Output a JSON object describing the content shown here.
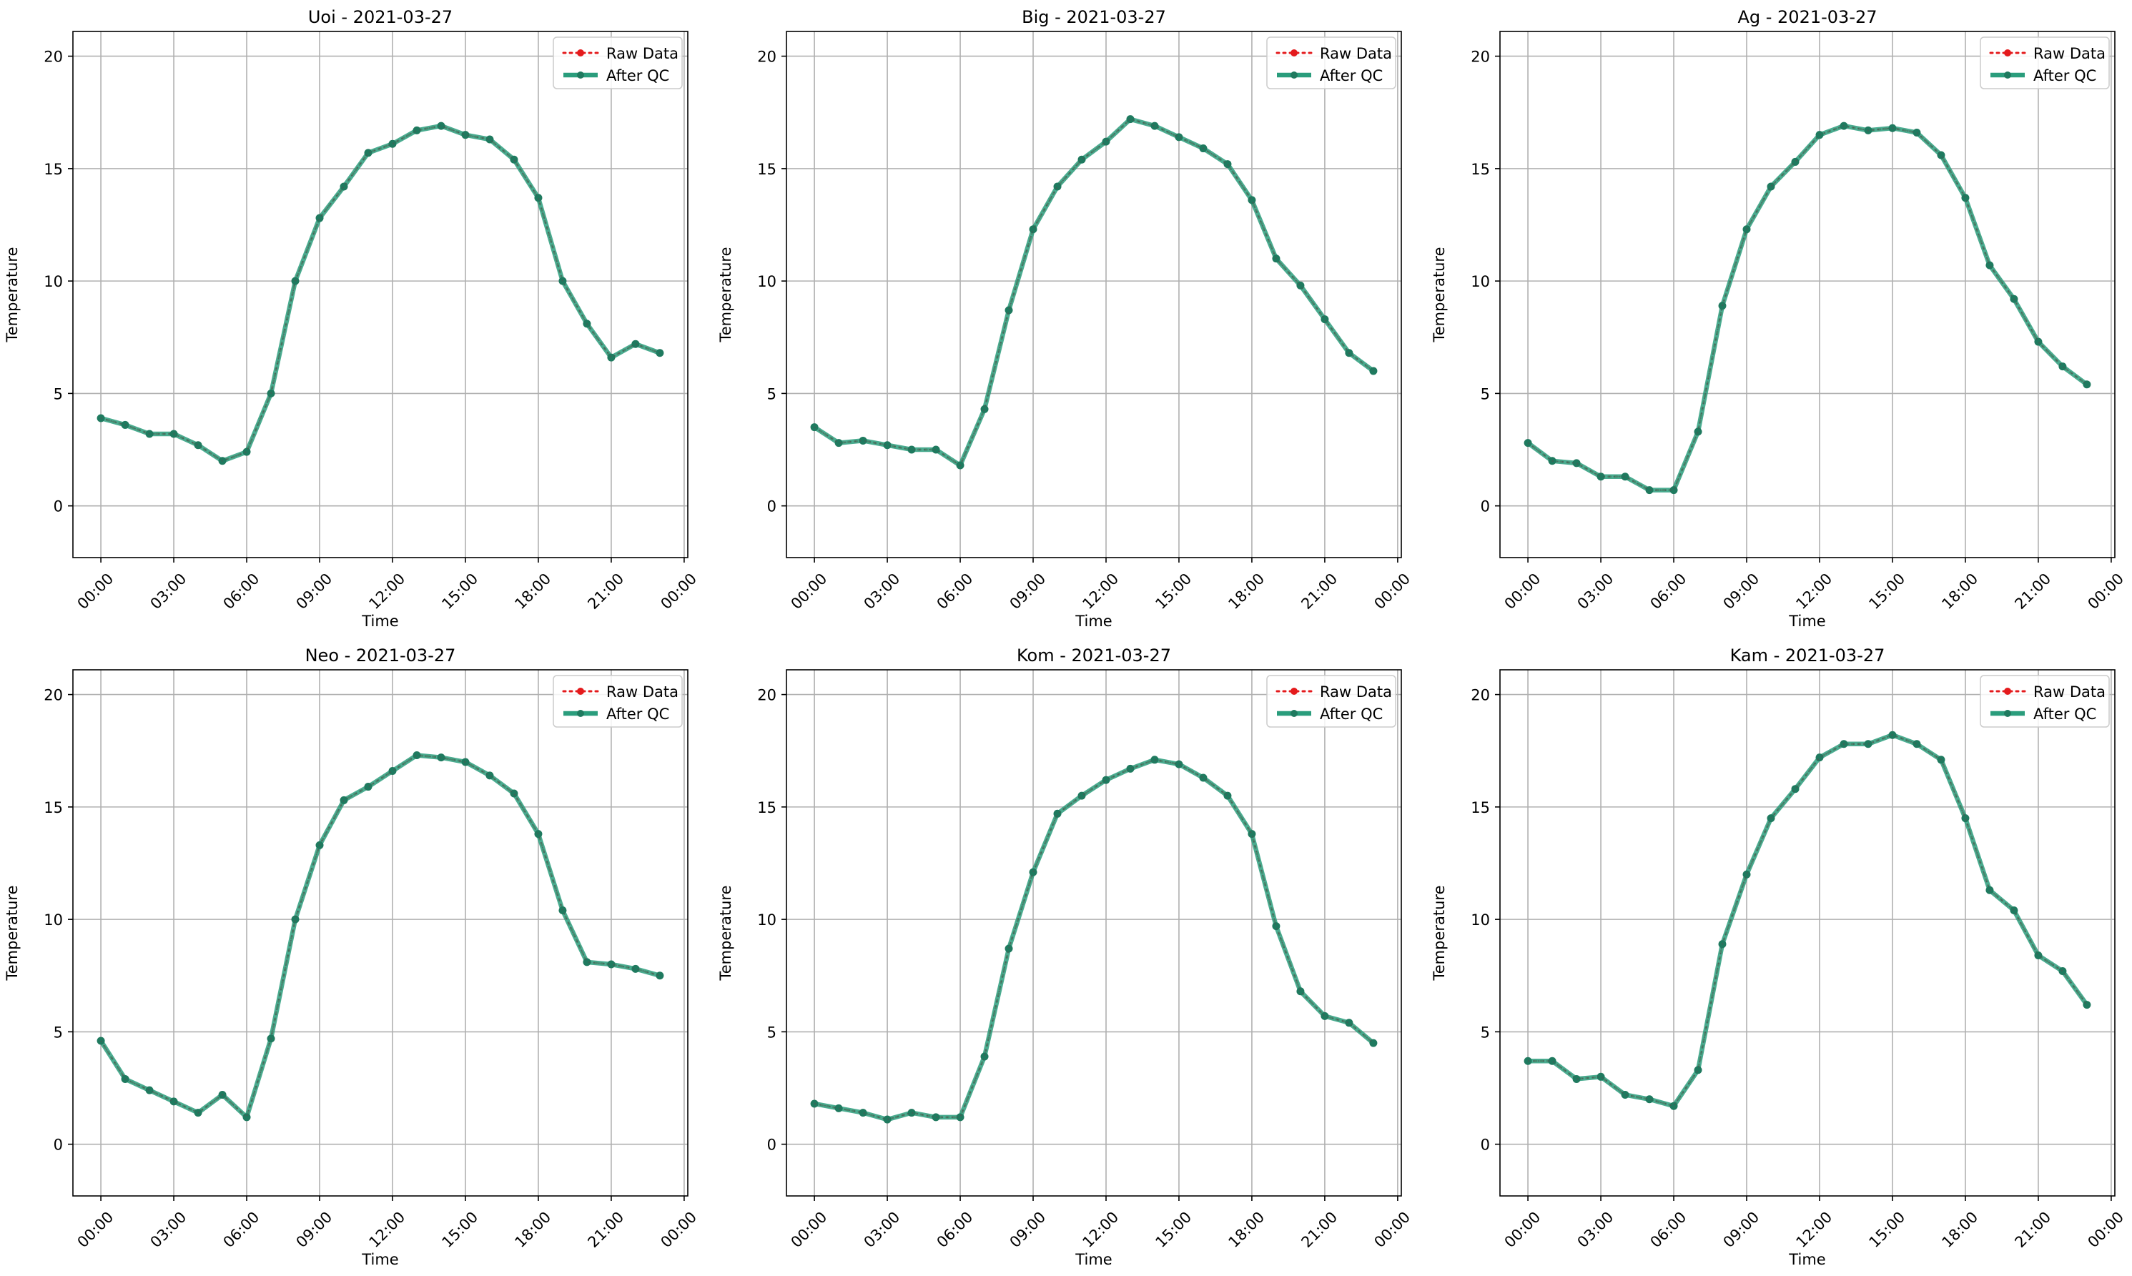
{
  "figure": {
    "ylabel": "Temperature",
    "xlabel": "Time",
    "legend": [
      "Raw Data",
      "After QC"
    ],
    "legend_placement": "top-right",
    "grid": true,
    "colors": {
      "raw": "#e41a1c",
      "qc": "#2a9d7c",
      "grid": "#b0b0b0"
    }
  },
  "chart_data": [
    {
      "type": "line",
      "title": "Uoi - 2021-03-27",
      "xlabel": "Time",
      "ylabel": "Temperature",
      "xticks": [
        "00:00",
        "03:00",
        "06:00",
        "09:00",
        "12:00",
        "15:00",
        "18:00",
        "21:00",
        "00:00"
      ],
      "yticks": [
        0,
        5,
        10,
        15,
        20
      ],
      "ylim": [
        -2.3,
        21.1
      ],
      "x_hours": [
        0,
        1,
        2,
        3,
        4,
        5,
        6,
        7,
        8,
        9,
        10,
        11,
        12,
        13,
        14,
        15,
        16,
        17,
        18,
        19,
        20,
        21,
        22,
        23
      ],
      "series": [
        {
          "name": "Raw Data",
          "values": [
            3.9,
            3.6,
            3.2,
            3.2,
            2.7,
            2.0,
            2.4,
            5.0,
            10.0,
            12.8,
            14.2,
            15.7,
            16.1,
            16.7,
            16.9,
            16.5,
            16.3,
            15.4,
            13.7,
            10.0,
            8.1,
            6.6,
            7.2,
            6.8
          ]
        },
        {
          "name": "After QC",
          "values": [
            3.9,
            3.6,
            3.2,
            3.2,
            2.7,
            2.0,
            2.4,
            5.0,
            10.0,
            12.8,
            14.2,
            15.7,
            16.1,
            16.7,
            16.9,
            16.5,
            16.3,
            15.4,
            13.7,
            10.0,
            8.1,
            6.6,
            7.2,
            6.8
          ]
        }
      ]
    },
    {
      "type": "line",
      "title": "Big - 2021-03-27",
      "xlabel": "Time",
      "ylabel": "Temperature",
      "xticks": [
        "00:00",
        "03:00",
        "06:00",
        "09:00",
        "12:00",
        "15:00",
        "18:00",
        "21:00",
        "00:00"
      ],
      "yticks": [
        0,
        5,
        10,
        15,
        20
      ],
      "ylim": [
        -2.3,
        21.1
      ],
      "x_hours": [
        0,
        1,
        2,
        3,
        4,
        5,
        6,
        7,
        8,
        9,
        10,
        11,
        12,
        13,
        14,
        15,
        16,
        17,
        18,
        19,
        20,
        21,
        22,
        23
      ],
      "series": [
        {
          "name": "Raw Data",
          "values": [
            3.5,
            2.8,
            2.9,
            2.7,
            2.5,
            2.5,
            1.8,
            4.3,
            8.7,
            12.3,
            14.2,
            15.4,
            16.2,
            17.2,
            16.9,
            16.4,
            15.9,
            15.2,
            13.6,
            11.0,
            9.8,
            8.3,
            6.8,
            6.0
          ]
        },
        {
          "name": "After QC",
          "values": [
            3.5,
            2.8,
            2.9,
            2.7,
            2.5,
            2.5,
            1.8,
            4.3,
            8.7,
            12.3,
            14.2,
            15.4,
            16.2,
            17.2,
            16.9,
            16.4,
            15.9,
            15.2,
            13.6,
            11.0,
            9.8,
            8.3,
            6.8,
            6.0
          ]
        }
      ]
    },
    {
      "type": "line",
      "title": "Ag - 2021-03-27",
      "xlabel": "Time",
      "ylabel": "Temperature",
      "xticks": [
        "00:00",
        "03:00",
        "06:00",
        "09:00",
        "12:00",
        "15:00",
        "18:00",
        "21:00",
        "00:00"
      ],
      "yticks": [
        0,
        5,
        10,
        15,
        20
      ],
      "ylim": [
        -2.3,
        21.1
      ],
      "x_hours": [
        0,
        1,
        2,
        3,
        4,
        5,
        6,
        7,
        8,
        9,
        10,
        11,
        12,
        13,
        14,
        15,
        16,
        17,
        18,
        19,
        20,
        21,
        22,
        23
      ],
      "series": [
        {
          "name": "Raw Data",
          "values": [
            2.8,
            2.0,
            1.9,
            1.3,
            1.3,
            0.7,
            0.7,
            3.3,
            8.9,
            12.3,
            14.2,
            15.3,
            16.5,
            16.9,
            16.7,
            16.8,
            16.6,
            15.6,
            13.7,
            10.7,
            9.2,
            7.3,
            6.2,
            5.4
          ]
        },
        {
          "name": "After QC",
          "values": [
            2.8,
            2.0,
            1.9,
            1.3,
            1.3,
            0.7,
            0.7,
            3.3,
            8.9,
            12.3,
            14.2,
            15.3,
            16.5,
            16.9,
            16.7,
            16.8,
            16.6,
            15.6,
            13.7,
            10.7,
            9.2,
            7.3,
            6.2,
            5.4
          ]
        }
      ]
    },
    {
      "type": "line",
      "title": "Neo - 2021-03-27",
      "xlabel": "Time",
      "ylabel": "Temperature",
      "xticks": [
        "00:00",
        "03:00",
        "06:00",
        "09:00",
        "12:00",
        "15:00",
        "18:00",
        "21:00",
        "00:00"
      ],
      "yticks": [
        0,
        5,
        10,
        15,
        20
      ],
      "ylim": [
        -2.3,
        21.1
      ],
      "x_hours": [
        0,
        1,
        2,
        3,
        4,
        5,
        6,
        7,
        8,
        9,
        10,
        11,
        12,
        13,
        14,
        15,
        16,
        17,
        18,
        19,
        20,
        21,
        22,
        23
      ],
      "series": [
        {
          "name": "Raw Data",
          "values": [
            4.6,
            2.9,
            2.4,
            1.9,
            1.4,
            2.2,
            1.2,
            4.7,
            10.0,
            13.3,
            15.3,
            15.9,
            16.6,
            17.3,
            17.2,
            17.0,
            16.4,
            15.6,
            13.8,
            10.4,
            8.1,
            8.0,
            7.8,
            7.5
          ]
        },
        {
          "name": "After QC",
          "values": [
            4.6,
            2.9,
            2.4,
            1.9,
            1.4,
            2.2,
            1.2,
            4.7,
            10.0,
            13.3,
            15.3,
            15.9,
            16.6,
            17.3,
            17.2,
            17.0,
            16.4,
            15.6,
            13.8,
            10.4,
            8.1,
            8.0,
            7.8,
            7.5
          ]
        }
      ]
    },
    {
      "type": "line",
      "title": "Kom - 2021-03-27",
      "xlabel": "Time",
      "ylabel": "Temperature",
      "xticks": [
        "00:00",
        "03:00",
        "06:00",
        "09:00",
        "12:00",
        "15:00",
        "18:00",
        "21:00",
        "00:00"
      ],
      "yticks": [
        0,
        5,
        10,
        15,
        20
      ],
      "ylim": [
        -2.3,
        21.1
      ],
      "x_hours": [
        0,
        1,
        2,
        3,
        4,
        5,
        6,
        7,
        8,
        9,
        10,
        11,
        12,
        13,
        14,
        15,
        16,
        17,
        18,
        19,
        20,
        21,
        22,
        23
      ],
      "series": [
        {
          "name": "Raw Data",
          "values": [
            1.8,
            1.6,
            1.4,
            1.1,
            1.4,
            1.2,
            1.2,
            3.9,
            8.7,
            12.1,
            14.7,
            15.5,
            16.2,
            16.7,
            17.1,
            16.9,
            16.3,
            15.5,
            13.8,
            9.7,
            6.8,
            5.7,
            5.4,
            4.5
          ]
        },
        {
          "name": "After QC",
          "values": [
            1.8,
            1.6,
            1.4,
            1.1,
            1.4,
            1.2,
            1.2,
            3.9,
            8.7,
            12.1,
            14.7,
            15.5,
            16.2,
            16.7,
            17.1,
            16.9,
            16.3,
            15.5,
            13.8,
            9.7,
            6.8,
            5.7,
            5.4,
            4.5
          ]
        }
      ]
    },
    {
      "type": "line",
      "title": "Kam - 2021-03-27",
      "xlabel": "Time",
      "ylabel": "Temperature",
      "xticks": [
        "00:00",
        "03:00",
        "06:00",
        "09:00",
        "12:00",
        "15:00",
        "18:00",
        "21:00",
        "00:00"
      ],
      "yticks": [
        0,
        5,
        10,
        15,
        20
      ],
      "ylim": [
        -2.3,
        21.1
      ],
      "x_hours": [
        0,
        1,
        2,
        3,
        4,
        5,
        6,
        7,
        8,
        9,
        10,
        11,
        12,
        13,
        14,
        15,
        16,
        17,
        18,
        19,
        20,
        21,
        22,
        23
      ],
      "series": [
        {
          "name": "Raw Data",
          "values": [
            3.7,
            3.7,
            2.9,
            3.0,
            2.2,
            2.0,
            1.7,
            3.3,
            8.9,
            12.0,
            14.5,
            15.8,
            17.2,
            17.8,
            17.8,
            18.2,
            17.8,
            17.1,
            14.5,
            11.3,
            10.4,
            8.4,
            7.7,
            6.2
          ]
        },
        {
          "name": "After QC",
          "values": [
            3.7,
            3.7,
            2.9,
            3.0,
            2.2,
            2.0,
            1.7,
            3.3,
            8.9,
            12.0,
            14.5,
            15.8,
            17.2,
            17.8,
            17.8,
            18.2,
            17.8,
            17.1,
            14.5,
            11.3,
            10.4,
            8.4,
            7.7,
            6.2
          ]
        }
      ]
    }
  ]
}
